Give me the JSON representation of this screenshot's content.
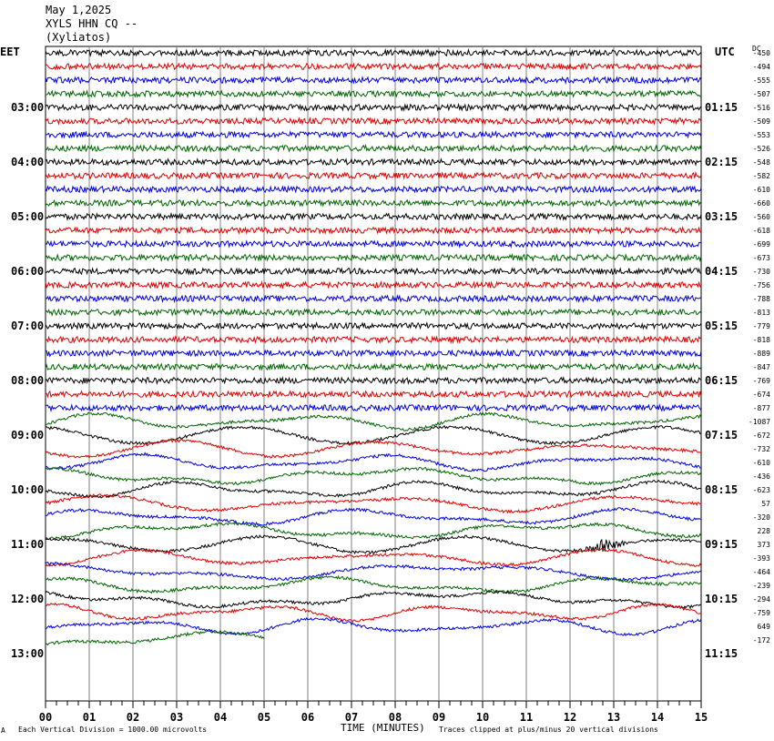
{
  "header": {
    "date": "May 1,2025",
    "station": "XYLS HHN CQ --",
    "location": "(Xyliatos)"
  },
  "labels": {
    "left_timezone": "EET",
    "right_timezone": "UTC",
    "dc_header": "DC"
  },
  "footer": {
    "xlabel": "TIME (MINUTES)",
    "scale_note": "Each Vertical Division = 1000.00 microvolts",
    "clip_note": "Traces clipped at plus/minus 20 vertical divisions",
    "corner_mark": "A"
  },
  "colors": {
    "trace_cycle": [
      "#000000",
      "#e00000",
      "#0000e0",
      "#006400"
    ],
    "grid": "#808080",
    "background": "#ffffff"
  },
  "chart_data": {
    "type": "line",
    "title": "XYLS HHN CQ --",
    "xlabel": "TIME (MINUTES)",
    "x_ticks": [
      "00",
      "01",
      "02",
      "03",
      "04",
      "05",
      "06",
      "07",
      "08",
      "09",
      "10",
      "11",
      "12",
      "13",
      "14",
      "15"
    ],
    "xlim": [
      0,
      15
    ],
    "minutes_per_trace": 15,
    "left_hour_labels": [
      "03:00",
      "04:00",
      "05:00",
      "06:00",
      "07:00",
      "08:00",
      "09:00",
      "10:00",
      "11:00",
      "12:00",
      "13:00"
    ],
    "right_hour_labels": [
      "01:15",
      "02:15",
      "03:15",
      "04:15",
      "05:15",
      "06:15",
      "07:15",
      "08:15",
      "09:15",
      "10:15",
      "11:15"
    ],
    "dc_offsets": [
      "-450",
      "-494",
      "-555",
      "-507",
      "-516",
      "-509",
      "-553",
      "-526",
      "-548",
      "-582",
      "-610",
      "-660",
      "-560",
      "-618",
      "-699",
      "-673",
      "-730",
      "-756",
      "-788",
      "-813",
      "-779",
      "-818",
      "-889",
      "-847",
      "-769",
      "-674",
      "-877",
      "-1087",
      "-672",
      "-732",
      "-610",
      "-436",
      "-623",
      "57",
      "-320",
      "228",
      "373",
      "-393",
      "-464",
      "-239",
      "-294",
      "-759",
      "649",
      "-172"
    ],
    "trace_count": 44,
    "last_trace_end_minute": 5,
    "event": {
      "trace_index": 36,
      "start_minute": 12.3,
      "end_minute": 13.4,
      "description": ""
    },
    "grid": true
  }
}
